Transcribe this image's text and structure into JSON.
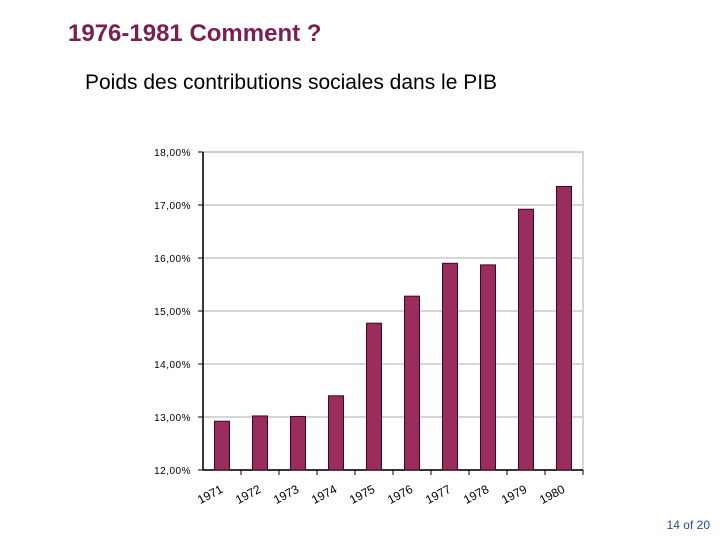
{
  "slide": {
    "title": "1976-1981 Comment ?",
    "subtitle": "Poids des contributions sociales dans le PIB",
    "page_number": "14 of 20"
  },
  "chart_data": {
    "type": "bar",
    "title": "",
    "xlabel": "",
    "ylabel": "",
    "categories": [
      "1971",
      "1972",
      "1973",
      "1974",
      "1975",
      "1976",
      "1977",
      "1978",
      "1979",
      "1980"
    ],
    "values": [
      12.92,
      13.02,
      13.01,
      13.4,
      14.77,
      15.28,
      15.9,
      15.87,
      16.92,
      17.35
    ],
    "ylim": [
      12.0,
      18.0
    ],
    "y_ticks": [
      12.0,
      13.0,
      14.0,
      15.0,
      16.0,
      17.0,
      18.0
    ],
    "y_tick_labels": [
      "12,00%",
      "13,00%",
      "14,00%",
      "15,00%",
      "16,00%",
      "17,00%",
      "18,00%"
    ],
    "grid": true,
    "legend": false,
    "colors": {
      "bar": "#9b2d5e",
      "grid": "#c8c8c8",
      "axis": "#000000"
    }
  }
}
